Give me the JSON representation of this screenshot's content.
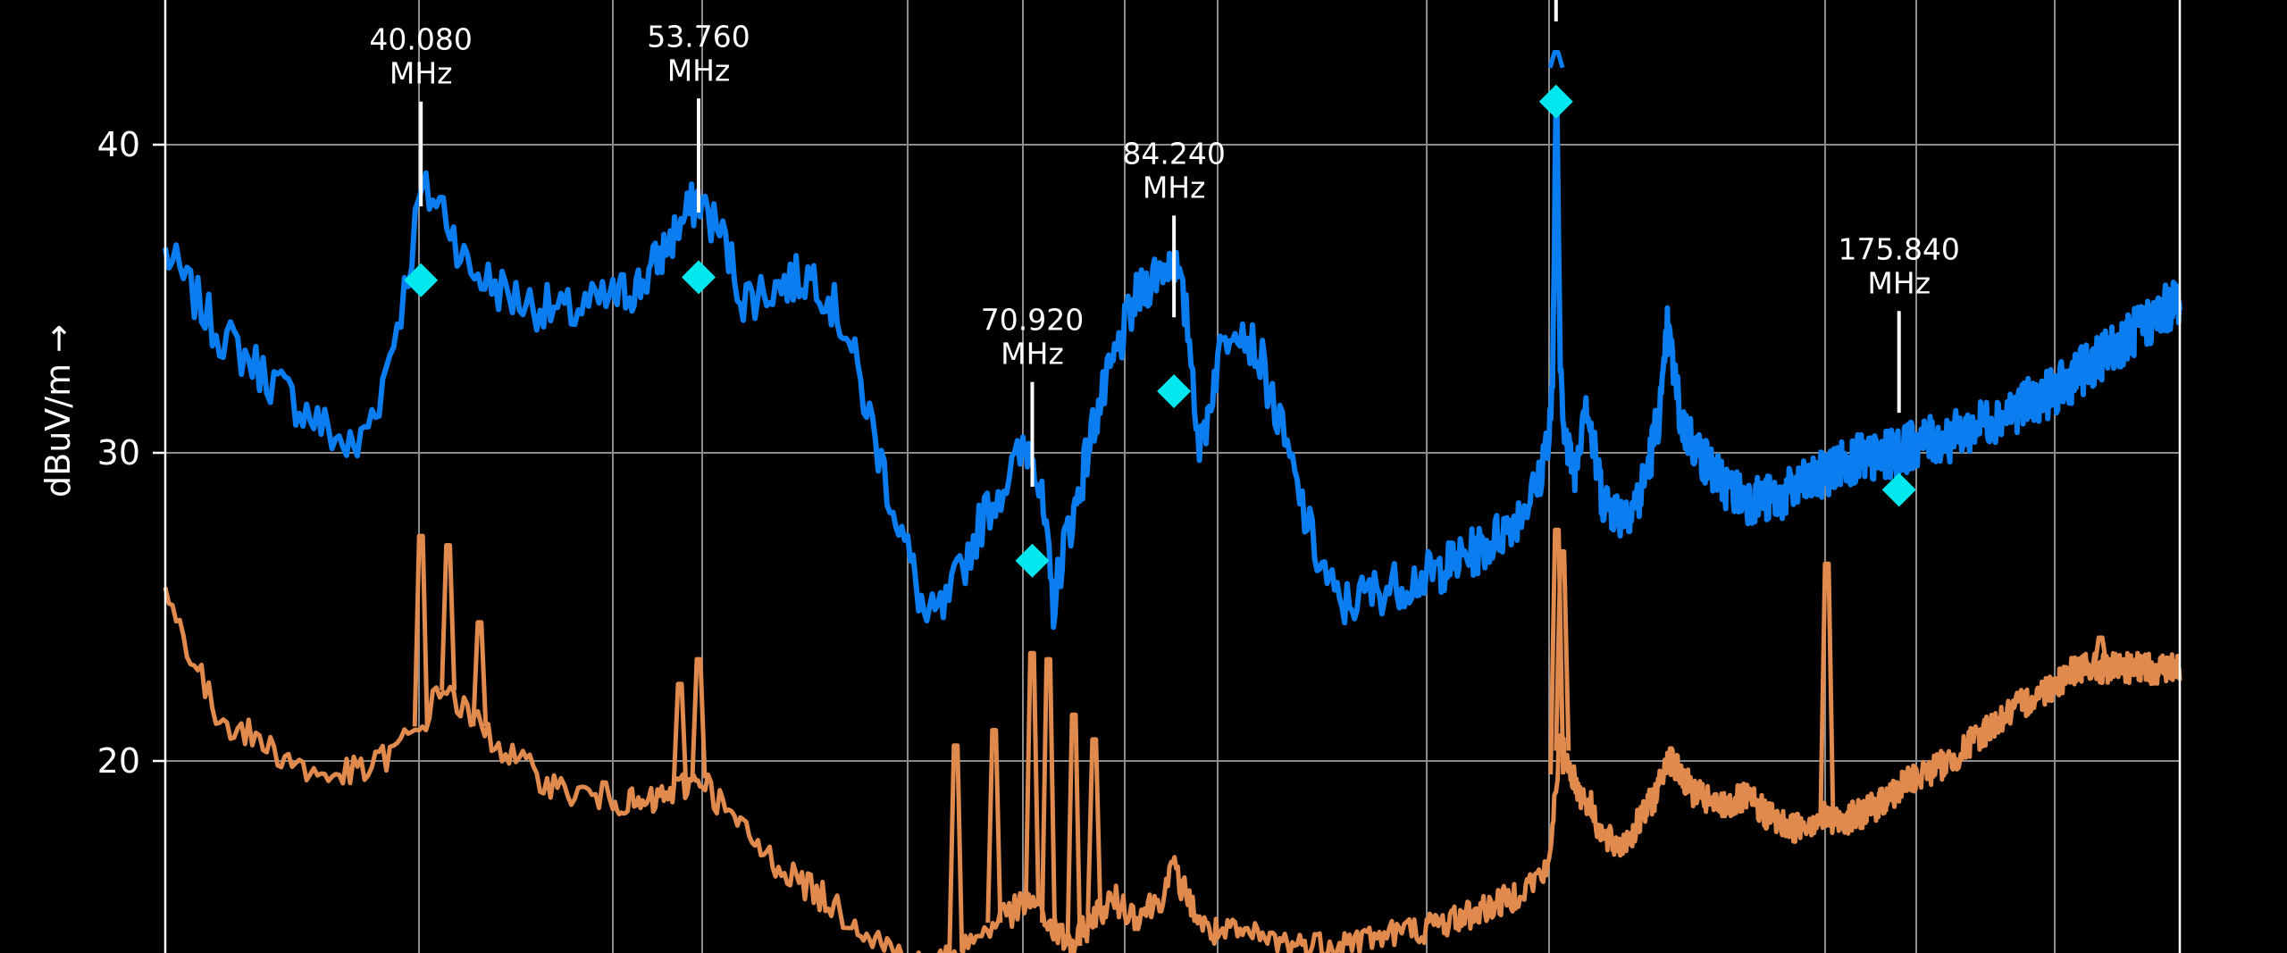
{
  "chart_data": {
    "type": "line",
    "ylabel": "dBuV/m →",
    "ylim": [
      14,
      45
    ],
    "xlim": [
      30,
      230
    ],
    "y_ticks": [
      {
        "value": 20,
        "label": "20"
      },
      {
        "value": 30,
        "label": "30"
      },
      {
        "value": 40,
        "label": "40"
      }
    ],
    "x_grid": [
      30,
      40,
      48,
      54,
      64,
      70,
      80,
      88,
      100,
      112,
      158,
      180,
      200,
      230
    ],
    "grid": true,
    "colors": {
      "peak": "#0a7ef0",
      "average": "#e08a4e",
      "marker": "#00e8ee",
      "marker_line": "#ffffff",
      "grid": "#8c8c8c"
    },
    "series": [
      {
        "color": "#0a7ef0",
        "points": [
          [
            30,
            36.5
          ],
          [
            32,
            34
          ],
          [
            34,
            32.5
          ],
          [
            36,
            31
          ],
          [
            37.5,
            30
          ],
          [
            38.5,
            32
          ],
          [
            39.5,
            35.5
          ],
          [
            40.08,
            38.5
          ],
          [
            41,
            38
          ],
          [
            42,
            36
          ],
          [
            44,
            35
          ],
          [
            46,
            34.5
          ],
          [
            48,
            35
          ],
          [
            50,
            35.5
          ],
          [
            52,
            37
          ],
          [
            53.76,
            38.3
          ],
          [
            55,
            37
          ],
          [
            56,
            35
          ],
          [
            58,
            35.5
          ],
          [
            59.5,
            35.8
          ],
          [
            61,
            34
          ],
          [
            63,
            29
          ],
          [
            65,
            24.5
          ],
          [
            66,
            25
          ],
          [
            68,
            28
          ],
          [
            70,
            30
          ],
          [
            70.92,
            30.3
          ],
          [
            72,
            28
          ],
          [
            73,
            25
          ],
          [
            74,
            27
          ],
          [
            75,
            28
          ],
          [
            77,
            31
          ],
          [
            79,
            33
          ],
          [
            81,
            35
          ],
          [
            83,
            36
          ],
          [
            84.24,
            36.3
          ],
          [
            85.5,
            34
          ],
          [
            86.5,
            30
          ],
          [
            88,
            33
          ],
          [
            89,
            34.5
          ],
          [
            90.5,
            33
          ],
          [
            92,
            30
          ],
          [
            93.5,
            27
          ],
          [
            95,
            25
          ],
          [
            97,
            25.5
          ],
          [
            100,
            26
          ],
          [
            103,
            26.5
          ],
          [
            106,
            27
          ],
          [
            109,
            28
          ],
          [
            111,
            29
          ],
          [
            112.6,
            32
          ],
          [
            113.2,
            42.5
          ],
          [
            113.8,
            33
          ],
          [
            115,
            30
          ],
          [
            116.5,
            29.5
          ],
          [
            118,
            32
          ],
          [
            119.5,
            30
          ],
          [
            121,
            28.5
          ],
          [
            124,
            28
          ],
          [
            127,
            28.5
          ],
          [
            129,
            30
          ],
          [
            131,
            32
          ],
          [
            131.7,
            34
          ],
          [
            132.5,
            33
          ],
          [
            134,
            31
          ],
          [
            137,
            30
          ],
          [
            141,
            29
          ],
          [
            145,
            28.5
          ],
          [
            150,
            28.5
          ],
          [
            155,
            29
          ],
          [
            160,
            29.5
          ],
          [
            165,
            29.8
          ],
          [
            170,
            29.8
          ],
          [
            175,
            30
          ],
          [
            180,
            30.3
          ],
          [
            185,
            30.5
          ],
          [
            190,
            31
          ],
          [
            195,
            31.5
          ],
          [
            200,
            32
          ],
          [
            205,
            32.5
          ],
          [
            210,
            33
          ],
          [
            215,
            33.5
          ],
          [
            220,
            34
          ],
          [
            225,
            34.5
          ],
          [
            230,
            35
          ]
        ],
        "noise": 0.8
      },
      {
        "color": "#e08a4e",
        "points": [
          [
            30,
            25.5
          ],
          [
            32,
            21.5
          ],
          [
            34,
            20.5
          ],
          [
            36,
            19.5
          ],
          [
            38,
            19.7
          ],
          [
            40,
            21
          ],
          [
            41,
            22.5
          ],
          [
            42,
            21.5
          ],
          [
            44,
            20
          ],
          [
            46,
            19
          ],
          [
            48,
            18.8
          ],
          [
            50,
            18.5
          ],
          [
            52,
            19
          ],
          [
            54,
            19.5
          ],
          [
            55,
            18.5
          ],
          [
            57,
            17
          ],
          [
            59,
            16
          ],
          [
            61,
            15
          ],
          [
            63,
            14
          ],
          [
            65,
            13.2
          ],
          [
            67,
            14
          ],
          [
            69,
            15
          ],
          [
            71,
            15.5
          ],
          [
            73,
            14.5
          ],
          [
            75,
            14
          ],
          [
            77,
            15
          ],
          [
            79,
            15.5
          ],
          [
            81,
            15
          ],
          [
            83,
            15.5
          ],
          [
            84.2,
            16.5
          ],
          [
            85.5,
            15.5
          ],
          [
            87,
            14.5
          ],
          [
            90,
            14.3
          ],
          [
            93,
            14
          ],
          [
            96,
            14.2
          ],
          [
            100,
            14.6
          ],
          [
            104,
            15
          ],
          [
            108,
            15.5
          ],
          [
            112,
            16.5
          ],
          [
            113,
            19
          ],
          [
            113.8,
            20.5
          ],
          [
            115,
            20
          ],
          [
            117,
            19
          ],
          [
            119,
            18.5
          ],
          [
            121,
            17.5
          ],
          [
            124,
            17.2
          ],
          [
            127,
            18
          ],
          [
            130,
            19
          ],
          [
            131.7,
            20.2
          ],
          [
            133,
            19.8
          ],
          [
            136,
            19
          ],
          [
            140,
            18.5
          ],
          [
            145,
            18.8
          ],
          [
            148,
            18.3
          ],
          [
            152,
            17.8
          ],
          [
            158,
            18.2
          ],
          [
            160,
            18
          ],
          [
            165,
            18.2
          ],
          [
            170,
            18.5
          ],
          [
            175,
            19
          ],
          [
            180,
            19.5
          ],
          [
            185,
            20
          ],
          [
            190,
            21
          ],
          [
            195,
            21.8
          ],
          [
            200,
            22.5
          ],
          [
            205,
            23
          ],
          [
            210,
            23
          ],
          [
            215,
            23
          ],
          [
            220,
            23
          ],
          [
            225,
            23
          ],
          [
            230,
            23
          ]
        ],
        "noise": 0.5
      }
    ],
    "spikes": [
      {
        "series": 1,
        "x": 40.08,
        "top": 27.3
      },
      {
        "series": 1,
        "x": 41.2,
        "top": 27
      },
      {
        "series": 1,
        "x": 42.5,
        "top": 24.5
      },
      {
        "series": 1,
        "x": 53.76,
        "top": 23.3
      },
      {
        "series": 1,
        "x": 52.5,
        "top": 22.5
      },
      {
        "series": 1,
        "x": 66.5,
        "top": 20.5
      },
      {
        "series": 1,
        "x": 68.5,
        "top": 21
      },
      {
        "series": 1,
        "x": 70.9,
        "top": 23.5
      },
      {
        "series": 1,
        "x": 72.5,
        "top": 23.3
      },
      {
        "series": 1,
        "x": 75,
        "top": 21.5
      },
      {
        "series": 1,
        "x": 77,
        "top": 20.7
      },
      {
        "series": 1,
        "x": 113.3,
        "top": 27.5
      },
      {
        "series": 1,
        "x": 114.2,
        "top": 26.8
      },
      {
        "series": 1,
        "x": 158.4,
        "top": 26.4
      },
      {
        "series": 1,
        "x": 211,
        "top": 24
      },
      {
        "series": 0,
        "x": 113.2,
        "top": 43
      }
    ],
    "markers": [
      {
        "x": 40.08,
        "marker": 35.6,
        "line_top": 41.4,
        "line_bottom": 38.0,
        "label": [
          "40.080",
          "MHz"
        ]
      },
      {
        "x": 53.76,
        "marker": 35.7,
        "line_top": 41.5,
        "line_bottom": 37.8,
        "label": [
          "53.760",
          "MHz"
        ]
      },
      {
        "x": 70.92,
        "marker": 26.5,
        "line_top": 32.3,
        "line_bottom": 28.9,
        "label": [
          "70.920",
          "MHz"
        ]
      },
      {
        "x": 84.24,
        "marker": 32.0,
        "line_top": 37.7,
        "line_bottom": 34.4,
        "label": [
          "84.240",
          "MHz"
        ]
      },
      {
        "x": 113.16,
        "marker": 41.4,
        "line_top": 45.5,
        "line_bottom": 44.0,
        "label": []
      },
      {
        "x": 175.84,
        "marker": 28.8,
        "line_top": 34.6,
        "line_bottom": 31.3,
        "label": [
          "175.840",
          "MHz"
        ]
      }
    ]
  }
}
